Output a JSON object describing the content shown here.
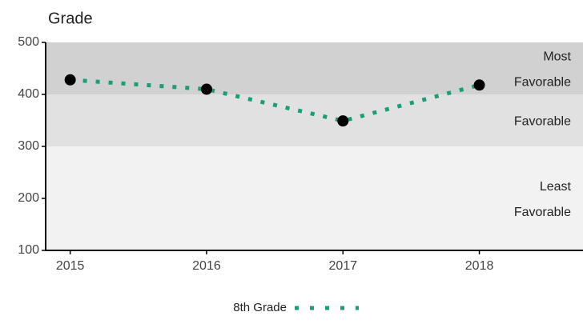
{
  "chart_data": {
    "type": "line",
    "title": "Grade",
    "x": [
      2015,
      2016,
      2017,
      2018
    ],
    "series": [
      {
        "name": "8th Grade",
        "color": "#1b9e77",
        "marker_color": "#000000",
        "values": [
          428,
          410,
          349,
          418
        ]
      }
    ],
    "xlim": [
      2014.82,
      2018.76
    ],
    "xticks": [
      2015,
      2016,
      2017,
      2018
    ],
    "ylim": [
      100,
      500
    ],
    "yticks": [
      100,
      200,
      300,
      400,
      500
    ],
    "bands": [
      {
        "from": 100,
        "to": 300,
        "color": "#f2f2f2",
        "label_lines": [
          "Least",
          "Favorable"
        ]
      },
      {
        "from": 300,
        "to": 400,
        "color": "#e1e1e1",
        "label_lines": [
          "Favorable"
        ]
      },
      {
        "from": 400,
        "to": 500,
        "color": "#d1d1d1",
        "label_lines": [
          "Most",
          "Favorable"
        ]
      }
    ],
    "legend": "bottom"
  }
}
